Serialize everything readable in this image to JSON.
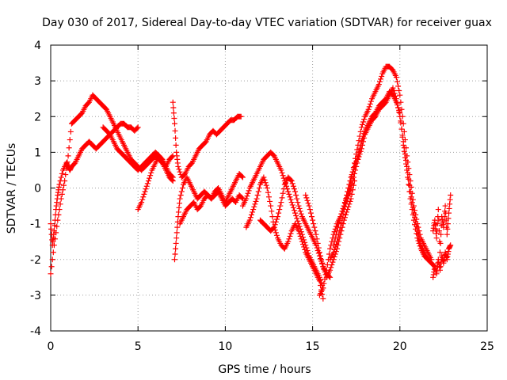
{
  "chart_data": {
    "type": "scatter",
    "title": "Day 030 of 2017, Sidereal Day-to-day VTEC variation (SDTVAR) for receiver guax",
    "xlabel": "GPS time / hours",
    "ylabel": "SDTVAR / TECUs",
    "xlim": [
      0,
      25
    ],
    "ylim": [
      -4,
      4
    ],
    "xticks": [
      0,
      5,
      10,
      15,
      20,
      25
    ],
    "yticks": [
      -4,
      -3,
      -2,
      -1,
      0,
      1,
      2,
      3,
      4
    ],
    "grid": true,
    "marker": "+",
    "color": "#ff0000",
    "series": [
      {
        "name": "track-1",
        "x": [
          0.0,
          0.1,
          0.2,
          0.3,
          0.4,
          0.5,
          0.7,
          0.9,
          1.0,
          1.1,
          1.2,
          1.4,
          1.6,
          1.8,
          2.0,
          2.2,
          2.4,
          2.6,
          2.8,
          3.0,
          3.2,
          3.4,
          3.6,
          3.8,
          4.0,
          4.2,
          4.4,
          4.6,
          4.8,
          5.0
        ],
        "y": [
          -1.0,
          -1.6,
          -1.2,
          -0.6,
          -0.2,
          0.1,
          0.5,
          0.7,
          0.6,
          0.5,
          0.6,
          0.7,
          0.9,
          1.1,
          1.2,
          1.3,
          1.2,
          1.1,
          1.2,
          1.3,
          1.4,
          1.5,
          1.6,
          1.7,
          1.8,
          1.8,
          1.7,
          1.7,
          1.6,
          1.7
        ]
      },
      {
        "name": "track-2",
        "x": [
          0.0,
          0.2,
          0.4,
          0.6,
          0.8,
          1.0,
          1.2,
          1.4,
          1.6,
          1.8,
          2.0,
          2.2,
          2.4,
          2.6,
          2.8,
          3.0,
          3.2,
          3.4,
          3.6,
          3.8,
          4.0,
          4.2,
          4.4,
          4.6,
          4.8,
          5.0,
          5.2,
          5.4,
          5.6,
          5.8,
          6.0,
          6.2,
          6.4,
          6.6,
          6.8,
          7.0
        ],
        "y": [
          -2.4,
          -1.6,
          -0.9,
          -0.3,
          0.2,
          0.9,
          1.8,
          1.9,
          2.0,
          2.1,
          2.3,
          2.4,
          2.6,
          2.5,
          2.4,
          2.3,
          2.2,
          2.0,
          1.8,
          1.6,
          1.4,
          1.2,
          1.0,
          0.8,
          0.7,
          0.6,
          0.5,
          0.6,
          0.7,
          0.8,
          0.9,
          0.8,
          0.7,
          0.6,
          0.8,
          0.9
        ]
      },
      {
        "name": "track-3",
        "x": [
          3.0,
          3.2,
          3.4,
          3.6,
          3.8,
          4.0,
          4.2,
          4.4,
          4.6,
          4.8,
          5.0,
          5.2,
          5.4,
          5.6,
          5.8,
          6.0,
          6.2,
          6.4,
          6.6,
          6.8,
          7.0
        ],
        "y": [
          1.7,
          1.6,
          1.5,
          1.3,
          1.1,
          1.0,
          0.9,
          0.8,
          0.7,
          0.6,
          0.5,
          0.6,
          0.7,
          0.8,
          0.9,
          1.0,
          0.9,
          0.7,
          0.5,
          0.3,
          0.2
        ]
      },
      {
        "name": "track-4",
        "x": [
          5.0,
          5.2,
          5.4,
          5.6,
          5.8,
          6.0,
          6.2,
          6.4,
          6.6,
          6.8,
          7.0
        ],
        "y": [
          -0.6,
          -0.4,
          -0.1,
          0.2,
          0.5,
          0.7,
          0.9,
          0.8,
          0.6,
          0.4,
          0.3
        ]
      },
      {
        "name": "track-5",
        "x": [
          7.0,
          7.1,
          7.2,
          7.3,
          7.5,
          7.7,
          7.9,
          8.1,
          8.3,
          8.5,
          8.7,
          8.9,
          9.1,
          9.3,
          9.5,
          9.7,
          9.9,
          10.1,
          10.3,
          10.5,
          10.7,
          10.9
        ],
        "y": [
          2.4,
          1.8,
          1.0,
          0.6,
          0.3,
          0.4,
          0.6,
          0.7,
          0.9,
          1.1,
          1.2,
          1.3,
          1.5,
          1.6,
          1.5,
          1.6,
          1.7,
          1.8,
          1.9,
          1.9,
          2.0,
          2.0
        ]
      },
      {
        "name": "track-6",
        "x": [
          7.1,
          7.2,
          7.3,
          7.4,
          7.6,
          7.8,
          8.0,
          8.2,
          8.4,
          8.6,
          8.8,
          9.0,
          9.2,
          9.4,
          9.6,
          9.8,
          10.0,
          10.2,
          10.4,
          10.6,
          10.8,
          11.0
        ],
        "y": [
          -2.0,
          -1.4,
          -0.8,
          -0.3,
          0.1,
          0.3,
          0.1,
          -0.1,
          -0.3,
          -0.2,
          -0.1,
          -0.2,
          -0.3,
          -0.1,
          0.0,
          -0.2,
          -0.4,
          -0.2,
          0.0,
          0.2,
          0.4,
          0.3
        ]
      },
      {
        "name": "track-7",
        "x": [
          7.4,
          7.6,
          7.8,
          8.0,
          8.2,
          8.4,
          8.6,
          8.8,
          9.0,
          9.2,
          9.4,
          9.6,
          9.8,
          10.0,
          10.2,
          10.4,
          10.6,
          10.8,
          11.0
        ],
        "y": [
          -1.0,
          -0.8,
          -0.6,
          -0.5,
          -0.4,
          -0.6,
          -0.5,
          -0.3,
          -0.2,
          -0.3,
          -0.2,
          -0.1,
          -0.3,
          -0.5,
          -0.4,
          -0.3,
          -0.4,
          -0.2,
          -0.3
        ]
      },
      {
        "name": "track-8",
        "x": [
          11.0,
          11.2,
          11.4,
          11.6,
          11.8,
          12.0,
          12.2,
          12.4,
          12.6,
          12.8,
          13.0,
          13.2,
          13.4,
          13.6,
          13.8,
          14.0,
          14.2,
          14.4,
          14.6,
          14.8,
          15.0,
          15.2,
          15.4,
          15.6
        ],
        "y": [
          -0.5,
          -0.3,
          0.0,
          0.2,
          0.4,
          0.6,
          0.8,
          0.9,
          1.0,
          0.9,
          0.7,
          0.5,
          0.2,
          -0.1,
          -0.4,
          -0.7,
          -1.0,
          -1.3,
          -1.6,
          -1.9,
          -2.1,
          -2.3,
          -2.5,
          -2.8
        ]
      },
      {
        "name": "track-9",
        "x": [
          11.2,
          11.4,
          11.6,
          11.8,
          12.0,
          12.2,
          12.4,
          12.6,
          12.8,
          13.0,
          13.2,
          13.4,
          13.6,
          13.8,
          14.0,
          14.2,
          14.4,
          14.6,
          14.8,
          15.0,
          15.2,
          15.4,
          15.6
        ],
        "y": [
          -1.1,
          -0.9,
          -0.6,
          -0.3,
          0.1,
          0.3,
          0.0,
          -0.5,
          -1.1,
          -1.4,
          -1.6,
          -1.7,
          -1.5,
          -1.2,
          -1.0,
          -1.2,
          -1.5,
          -1.8,
          -2.0,
          -2.2,
          -2.4,
          -2.6,
          -3.1
        ]
      },
      {
        "name": "track-10",
        "x": [
          12.0,
          12.2,
          12.4,
          12.6,
          12.8,
          13.0,
          13.2,
          13.4,
          13.6,
          13.8,
          14.0,
          14.2,
          14.4,
          14.6,
          14.8,
          15.0,
          15.2,
          15.4,
          15.6,
          15.8,
          16.0
        ],
        "y": [
          -0.9,
          -1.0,
          -1.1,
          -1.2,
          -1.1,
          -0.8,
          -0.4,
          0.1,
          0.3,
          0.2,
          -0.1,
          -0.5,
          -0.8,
          -1.0,
          -1.2,
          -1.4,
          -1.6,
          -1.9,
          -2.2,
          -2.4,
          -2.5
        ]
      },
      {
        "name": "track-11",
        "x": [
          15.4,
          15.6,
          15.8,
          16.0,
          16.2,
          16.4,
          16.6,
          16.8,
          17.0,
          17.2,
          17.4,
          17.6,
          17.8,
          18.0,
          18.2,
          18.4,
          18.6,
          18.8,
          19.0,
          19.2,
          19.4,
          19.6,
          19.8,
          20.0,
          20.2,
          20.4,
          20.6,
          20.8,
          21.0,
          21.2,
          21.4,
          21.6,
          21.8
        ],
        "y": [
          -3.0,
          -2.8,
          -2.3,
          -1.7,
          -1.3,
          -1.0,
          -0.8,
          -0.5,
          -0.2,
          0.2,
          0.7,
          1.2,
          1.7,
          2.0,
          2.2,
          2.5,
          2.7,
          2.9,
          3.2,
          3.4,
          3.4,
          3.3,
          3.1,
          2.6,
          1.8,
          0.9,
          0.2,
          -0.5,
          -1.0,
          -1.4,
          -1.6,
          -1.8,
          -2.0
        ]
      },
      {
        "name": "track-12",
        "x": [
          16.2,
          16.4,
          16.6,
          16.8,
          17.0,
          17.2,
          17.4,
          17.6,
          17.8,
          18.0,
          18.2,
          18.4,
          18.6,
          18.8,
          19.0,
          19.2,
          19.4,
          19.6,
          19.8,
          20.0,
          20.2,
          20.4,
          20.6,
          20.8,
          21.0,
          21.2,
          21.4,
          21.6,
          21.8,
          22.0
        ],
        "y": [
          -1.6,
          -1.2,
          -0.8,
          -0.5,
          -0.1,
          0.3,
          0.6,
          0.9,
          1.3,
          1.6,
          1.8,
          2.0,
          2.1,
          2.3,
          2.4,
          2.5,
          2.7,
          2.6,
          2.4,
          2.1,
          1.2,
          0.5,
          -0.3,
          -0.9,
          -1.4,
          -1.7,
          -1.9,
          -2.0,
          -2.1,
          -2.2
        ]
      },
      {
        "name": "track-13",
        "x": [
          16.0,
          16.2,
          16.4,
          16.6,
          16.8,
          17.0,
          17.2,
          17.4,
          17.6,
          17.8,
          18.0,
          18.2,
          18.4,
          18.6,
          18.8,
          19.0,
          19.2,
          19.4,
          19.6,
          19.8,
          20.0,
          20.2,
          20.4,
          20.6,
          20.8,
          21.0,
          21.2,
          21.4,
          21.6
        ],
        "y": [
          -2.0,
          -1.8,
          -1.5,
          -1.1,
          -0.6,
          -0.3,
          0.0,
          0.4,
          0.8,
          1.1,
          1.5,
          1.7,
          1.9,
          2.0,
          2.2,
          2.3,
          2.4,
          2.6,
          2.8,
          2.5,
          2.0,
          1.3,
          0.6,
          -0.1,
          -0.7,
          -1.2,
          -1.6,
          -1.8,
          -2.0
        ]
      },
      {
        "name": "track-14",
        "x": [
          14.6,
          14.8,
          15.0,
          15.2,
          15.4,
          15.6,
          15.8,
          16.0,
          16.2,
          16.4,
          16.6,
          16.8,
          17.0,
          17.2,
          17.4
        ],
        "y": [
          -0.2,
          -0.5,
          -0.9,
          -1.3,
          -1.8,
          -2.2,
          -2.5,
          -2.3,
          -2.0,
          -1.7,
          -1.3,
          -0.9,
          -0.6,
          -0.3,
          0.2
        ]
      },
      {
        "name": "track-15",
        "x": [
          21.9,
          22.0,
          22.1,
          22.2,
          22.3,
          22.4,
          22.5,
          22.6,
          22.7,
          22.8,
          22.9
        ],
        "y": [
          -1.2,
          -0.9,
          -1.4,
          -0.6,
          -1.8,
          -0.8,
          -1.1,
          -0.5,
          -1.3,
          -0.7,
          -0.2
        ]
      },
      {
        "name": "track-16",
        "x": [
          21.9,
          22.0,
          22.1,
          22.2,
          22.3,
          22.4,
          22.5,
          22.6,
          22.7,
          22.8,
          22.9
        ],
        "y": [
          -2.5,
          -2.2,
          -2.4,
          -2.0,
          -2.3,
          -1.9,
          -2.1,
          -1.8,
          -2.0,
          -1.7,
          -1.6
        ]
      }
    ]
  }
}
